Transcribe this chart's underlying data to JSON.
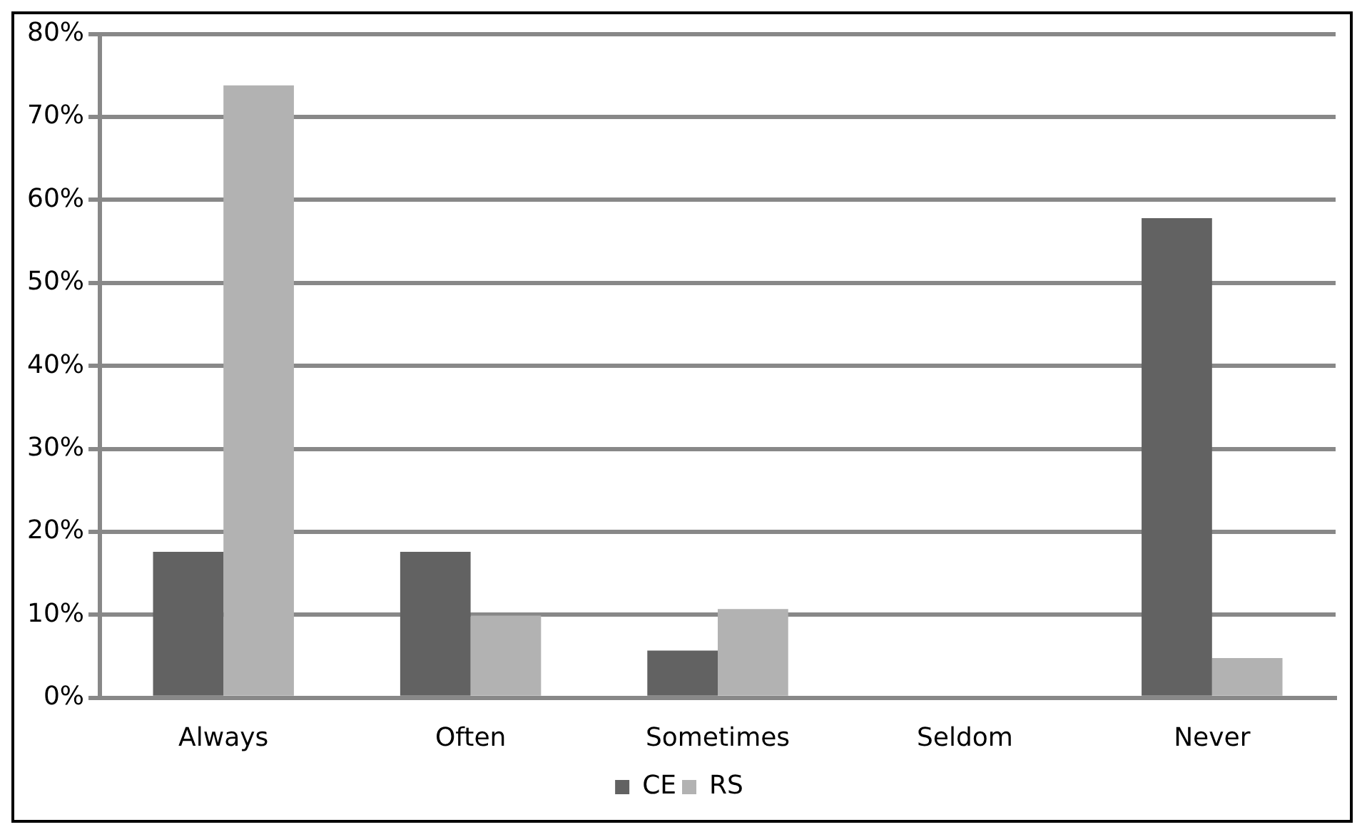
{
  "chart_data": {
    "type": "bar",
    "categories": [
      "Always",
      "Often",
      "Sometimes",
      "Seldom",
      "Never"
    ],
    "series": [
      {
        "name": "CE",
        "color": "#626262",
        "values": [
          17.6,
          17.6,
          5.7,
          0,
          57.8
        ]
      },
      {
        "name": "RS",
        "color": "#b2b2b2",
        "values": [
          73.8,
          9.9,
          10.7,
          0,
          4.8
        ]
      }
    ],
    "ylim": [
      0,
      80
    ],
    "yticks": [
      {
        "value": 0,
        "label": "0%"
      },
      {
        "value": 10,
        "label": "10%"
      },
      {
        "value": 20,
        "label": "20%"
      },
      {
        "value": 30,
        "label": "30%"
      },
      {
        "value": 40,
        "label": "40%"
      },
      {
        "value": 50,
        "label": "50%"
      },
      {
        "value": 60,
        "label": "60%"
      },
      {
        "value": 70,
        "label": "70%"
      },
      {
        "value": 80,
        "label": "80%"
      }
    ],
    "grid": "y",
    "legend": "bottom"
  }
}
